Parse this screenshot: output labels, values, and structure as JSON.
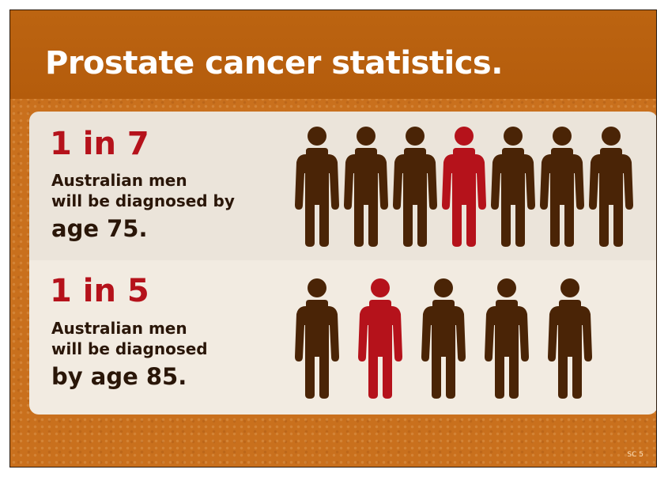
{
  "slide": {
    "title": "Prostate cancer statistics.",
    "slide_number": "SC 5"
  },
  "stats": [
    {
      "ratio": "1 in 7",
      "line1": "Australian men",
      "line2": "will be diagnosed by",
      "age_text": "age 75.",
      "total": 7,
      "highlight_position": 4
    },
    {
      "ratio": "1 in 5",
      "line1": "Australian men",
      "line2": "will be diagnosed",
      "age_text": "by age 85.",
      "total": 5,
      "highlight_position": 2
    }
  ],
  "icons": {
    "person": "person-icon"
  },
  "colors": {
    "header": "#b9600f",
    "background": "#c9701d",
    "accent_red": "#b5121b",
    "figure_brown": "#4a2406",
    "text_dark": "#2a1608"
  }
}
